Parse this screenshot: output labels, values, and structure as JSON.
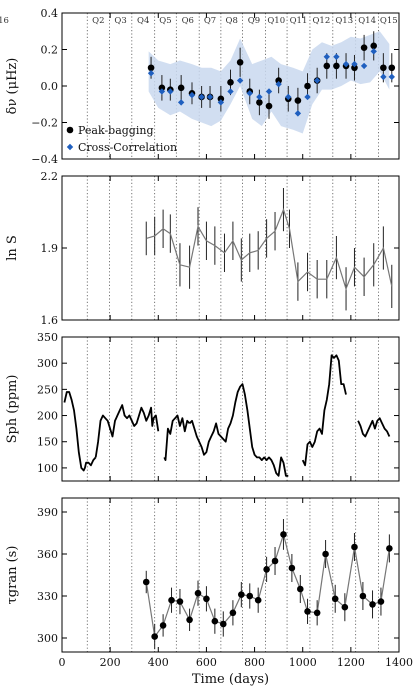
{
  "chart_data": [
    {
      "type": "scatter",
      "id": "dnu",
      "ylabel": "δν (μHz)",
      "ylim": [
        -0.4,
        0.4
      ],
      "yticks": [
        "0.4",
        "0.2",
        "0.0",
        "−0.2",
        "−0.4"
      ],
      "ytick_values": [
        0.4,
        0.2,
        0.0,
        -0.2,
        -0.4
      ],
      "quarters": [
        "Q2",
        "Q3",
        "Q4",
        "Q5",
        "Q6",
        "Q7",
        "Q8",
        "Q9",
        "Q10",
        "Q11",
        "Q12",
        "Q13",
        "Q14",
        "Q15",
        "Q16"
      ],
      "legend": [
        "Peak-bagging",
        "Cross-Correlation"
      ],
      "band": {
        "x": [
          360,
          400,
          450,
          490,
          540,
          580,
          620,
          660,
          700,
          740,
          790,
          830,
          870,
          910,
          960,
          1000,
          1040,
          1080,
          1120,
          1160,
          1200,
          1240,
          1280,
          1320,
          1360
        ],
        "upper": [
          0.19,
          0.14,
          0.12,
          0.14,
          0.12,
          0.1,
          0.1,
          0.08,
          0.14,
          0.26,
          0.12,
          0.14,
          0.16,
          0.12,
          0.1,
          0.08,
          0.2,
          0.24,
          0.22,
          0.24,
          0.27,
          0.26,
          0.28,
          0.3,
          0.23
        ],
        "lower": [
          -0.03,
          -0.12,
          -0.16,
          -0.14,
          -0.18,
          -0.2,
          -0.22,
          -0.19,
          -0.1,
          0.0,
          -0.18,
          -0.22,
          -0.14,
          -0.22,
          -0.24,
          -0.26,
          -0.1,
          -0.02,
          -0.02,
          0.0,
          0.03,
          0.01,
          0.02,
          0.08,
          -0.02
        ]
      },
      "series": [
        {
          "name": "Peak-bagging",
          "x": [
            370,
            415,
            450,
            495,
            540,
            580,
            615,
            660,
            700,
            740,
            780,
            820,
            860,
            900,
            940,
            980,
            1020,
            1060,
            1100,
            1140,
            1180,
            1215,
            1255,
            1295,
            1335,
            1370
          ],
          "y": [
            0.1,
            -0.01,
            -0.02,
            -0.01,
            -0.04,
            -0.06,
            -0.06,
            -0.07,
            0.02,
            0.13,
            -0.03,
            -0.09,
            -0.11,
            0.03,
            -0.07,
            -0.08,
            0.0,
            0.03,
            0.11,
            0.11,
            0.11,
            0.1,
            0.21,
            0.22,
            0.1,
            0.1
          ],
          "err": [
            0.06,
            0.07,
            0.06,
            0.07,
            0.06,
            0.06,
            0.06,
            0.07,
            0.07,
            0.08,
            0.07,
            0.07,
            0.07,
            0.07,
            0.07,
            0.07,
            0.07,
            0.07,
            0.07,
            0.07,
            0.07,
            0.07,
            0.07,
            0.08,
            0.08,
            0.08
          ]
        },
        {
          "name": "Cross-Correlation",
          "x": [
            370,
            415,
            450,
            495,
            540,
            580,
            615,
            660,
            700,
            740,
            780,
            820,
            860,
            900,
            940,
            980,
            1020,
            1060,
            1100,
            1140,
            1180,
            1215,
            1255,
            1295,
            1335,
            1370
          ],
          "y": [
            0.07,
            -0.03,
            -0.03,
            -0.09,
            -0.05,
            -0.06,
            -0.06,
            -0.09,
            -0.03,
            0.03,
            -0.04,
            -0.06,
            -0.03,
            0.01,
            -0.06,
            -0.15,
            -0.06,
            0.03,
            0.16,
            0.16,
            0.12,
            0.12,
            0.11,
            0.19,
            0.05,
            0.05
          ]
        }
      ]
    },
    {
      "type": "line",
      "id": "lnS",
      "ylabel": "ln S",
      "ylim": [
        1.6,
        2.2
      ],
      "yticks": [
        "2.2",
        "1.9",
        "1.6"
      ],
      "ytick_values": [
        2.2,
        1.9,
        1.6
      ],
      "series": [
        {
          "name": "ln S",
          "x": [
            350,
            385,
            420,
            450,
            490,
            530,
            565,
            600,
            635,
            675,
            710,
            745,
            780,
            815,
            850,
            885,
            920,
            945,
            980,
            1020,
            1060,
            1100,
            1140,
            1180,
            1215,
            1255,
            1295,
            1335,
            1370
          ],
          "y": [
            1.94,
            1.95,
            1.98,
            1.96,
            1.83,
            1.82,
            1.99,
            1.93,
            1.91,
            1.88,
            1.93,
            1.85,
            1.88,
            1.89,
            1.94,
            1.97,
            2.06,
            1.98,
            1.76,
            1.8,
            1.77,
            1.77,
            1.86,
            1.73,
            1.82,
            1.78,
            1.83,
            1.9,
            1.74
          ],
          "err": [
            0.07,
            0.08,
            0.08,
            0.08,
            0.09,
            0.09,
            0.08,
            0.08,
            0.08,
            0.08,
            0.08,
            0.09,
            0.08,
            0.08,
            0.08,
            0.08,
            0.09,
            0.08,
            0.08,
            0.08,
            0.08,
            0.08,
            0.09,
            0.09,
            0.08,
            0.08,
            0.09,
            0.09,
            0.09
          ]
        }
      ]
    },
    {
      "type": "line",
      "id": "sph",
      "ylabel": "Sph (ppm)",
      "ylim": [
        75,
        350
      ],
      "yticks": [
        "350",
        "300",
        "250",
        "200",
        "150",
        "100"
      ],
      "ytick_values": [
        350,
        300,
        250,
        200,
        150,
        100
      ],
      "segments": [
        {
          "x": [
            10,
            20,
            30,
            40,
            50,
            60,
            70,
            80,
            90,
            95,
            100,
            110,
            120,
            130,
            140
          ],
          "y": [
            225,
            245,
            245,
            230,
            210,
            175,
            130,
            100,
            95,
            100,
            110,
            110,
            105,
            115,
            120
          ]
        },
        {
          "x": [
            140,
            150,
            160,
            170,
            180,
            190,
            200,
            210,
            220,
            225,
            230,
            240,
            250,
            260,
            270,
            280,
            290,
            300,
            310,
            320,
            330,
            340,
            350,
            360,
            370,
            375,
            380,
            390,
            400
          ],
          "y": [
            120,
            150,
            190,
            200,
            195,
            190,
            175,
            160,
            190,
            195,
            200,
            210,
            220,
            200,
            195,
            200,
            190,
            180,
            185,
            200,
            215,
            205,
            190,
            200,
            215,
            180,
            195,
            200,
            170
          ]
        },
        {
          "x": [
            425,
            430,
            440,
            450,
            460,
            470,
            480,
            490,
            500,
            510,
            520,
            530
          ],
          "y": [
            120,
            115,
            175,
            165,
            190,
            195,
            200,
            180,
            195,
            170,
            190,
            185
          ]
        },
        {
          "x": [
            530,
            540,
            550,
            560,
            570,
            580,
            590,
            600,
            610,
            620,
            630,
            640,
            650,
            660,
            670,
            680,
            690,
            700,
            710,
            720,
            730,
            740,
            750,
            760,
            770,
            780,
            790,
            800,
            810,
            820,
            830,
            840,
            850,
            860,
            870,
            880,
            890,
            900,
            910,
            920,
            930,
            940
          ],
          "y": [
            185,
            190,
            175,
            160,
            150,
            140,
            125,
            130,
            150,
            160,
            170,
            185,
            165,
            160,
            155,
            150,
            175,
            185,
            200,
            225,
            245,
            255,
            260,
            240,
            210,
            175,
            140,
            125,
            120,
            120,
            115,
            120,
            115,
            120,
            115,
            105,
            90,
            85,
            120,
            110,
            85,
            85
          ]
        },
        {
          "x": [
            1000,
            1010,
            1020,
            1030,
            1040,
            1050,
            1060,
            1070,
            1080,
            1090,
            1100,
            1110,
            1120,
            1130,
            1140,
            1150,
            1160,
            1170,
            1180
          ],
          "y": [
            115,
            105,
            145,
            150,
            140,
            150,
            170,
            175,
            165,
            210,
            230,
            260,
            315,
            310,
            315,
            305,
            260,
            260,
            240
          ]
        },
        {
          "x": [
            1230,
            1240,
            1250,
            1260,
            1270,
            1280,
            1290,
            1300,
            1310,
            1320,
            1330,
            1340,
            1350,
            1360
          ],
          "y": [
            190,
            180,
            165,
            160,
            170,
            180,
            190,
            175,
            190,
            195,
            185,
            175,
            170,
            160
          ]
        }
      ]
    },
    {
      "type": "line",
      "id": "tau",
      "ylabel": "τgran (s)",
      "xlabel": "Time (days)",
      "ylim": [
        290,
        400
      ],
      "xlim": [
        0,
        1400
      ],
      "yticks": [
        "390",
        "360",
        "330",
        "300"
      ],
      "ytick_values": [
        390,
        360,
        330,
        300
      ],
      "xticks": [
        "0",
        "200",
        "400",
        "600",
        "800",
        "1000",
        "1200",
        "1400"
      ],
      "xtick_values": [
        0,
        200,
        400,
        600,
        800,
        1000,
        1200,
        1400
      ],
      "series": [
        {
          "name": "tau",
          "x": [
            350,
            385,
            420,
            455,
            490,
            530,
            565,
            600,
            635,
            670,
            710,
            745,
            780,
            815,
            850,
            885,
            920,
            955,
            990,
            1020,
            1060,
            1095,
            1135,
            1175,
            1215,
            1250,
            1290,
            1325,
            1360
          ],
          "y": [
            340,
            301,
            309,
            327,
            326,
            313,
            332,
            328,
            312,
            310,
            318,
            331,
            330,
            327,
            349,
            355,
            374,
            350,
            335,
            319,
            318,
            360,
            328,
            322,
            365,
            330,
            324,
            326,
            364
          ],
          "err": [
            8,
            9,
            8,
            9,
            9,
            8,
            9,
            9,
            9,
            9,
            9,
            9,
            9,
            9,
            9,
            10,
            11,
            10,
            10,
            9,
            9,
            10,
            10,
            10,
            10,
            10,
            10,
            10,
            10
          ]
        }
      ]
    }
  ]
}
